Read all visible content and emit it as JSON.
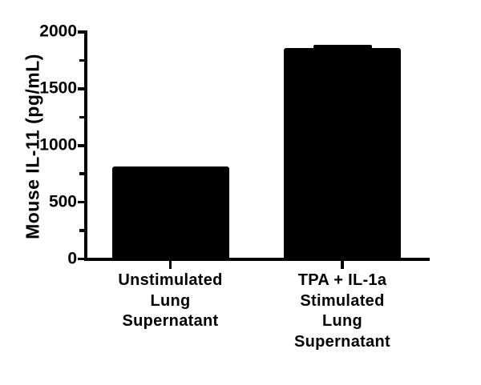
{
  "colors": {
    "background": "#ffffff",
    "ink": "#000000"
  },
  "chart_data": {
    "type": "bar",
    "title": "",
    "xlabel": "",
    "ylabel": "Mouse IL-11 (pg/mL)",
    "ylim": [
      0,
      2000
    ],
    "y_major_ticks": [
      0,
      500,
      1000,
      1500,
      2000
    ],
    "y_tick_labels": [
      "0",
      "500",
      "1000",
      "1500",
      "2000"
    ],
    "y_minor_ticks": [
      250,
      750,
      1250,
      1750
    ],
    "grid": false,
    "legend": false,
    "bar_color": "#000000",
    "categories": [
      "Unstimulated Lung Supernatant",
      "TPA + IL-1a Stimulated Lung Supernatant"
    ],
    "category_label_lines": [
      [
        "Unstimulated",
        "Lung",
        "Supernatant"
      ],
      [
        "TPA + IL-1a",
        "Stimulated",
        "Lung",
        "Supernatant"
      ]
    ],
    "values": [
      815,
      1860
    ],
    "error_plus": [
      0,
      30
    ],
    "units": "pg/mL"
  }
}
